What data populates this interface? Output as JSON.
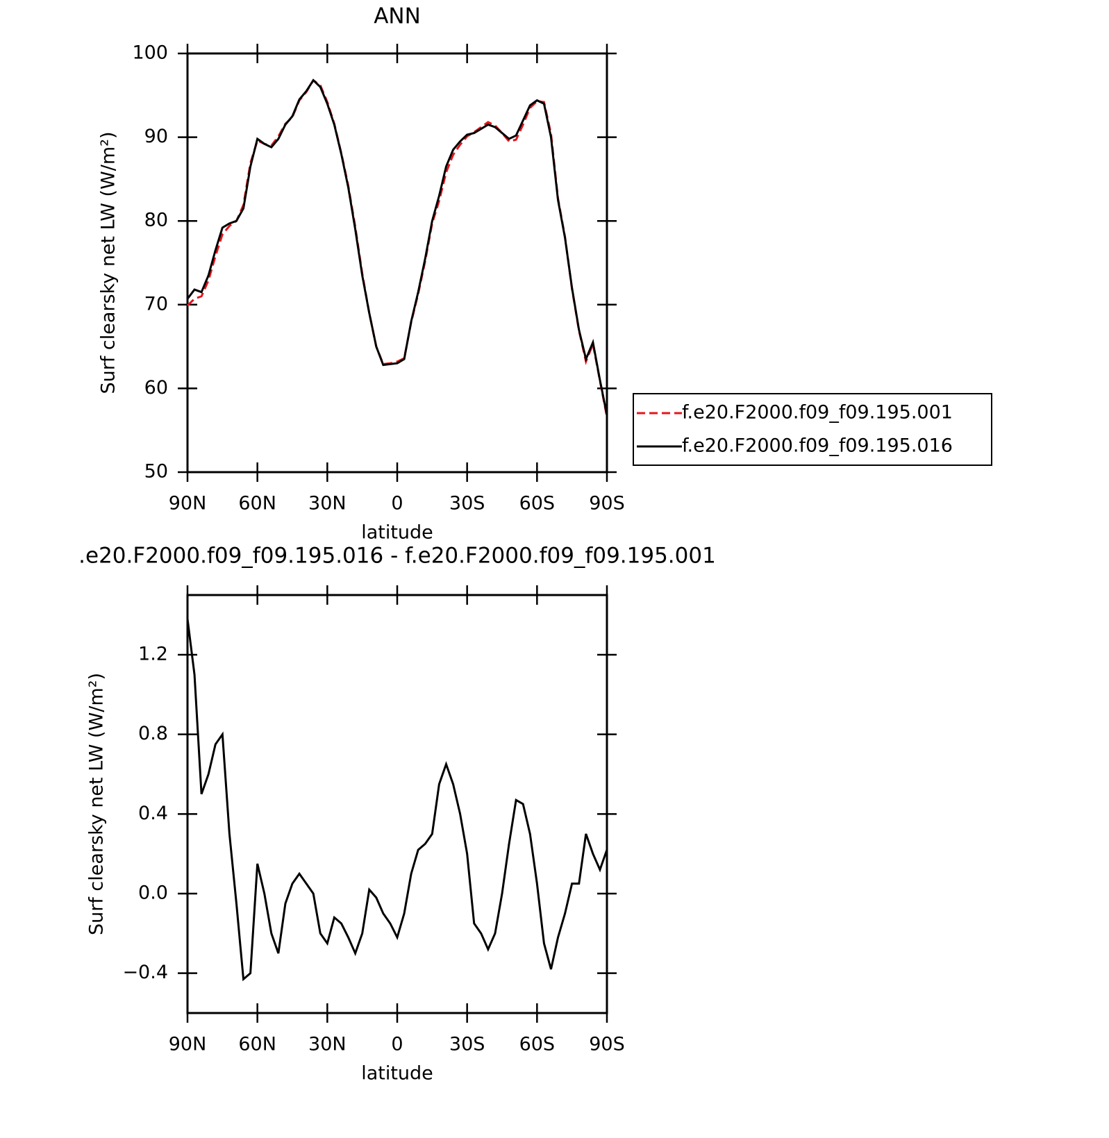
{
  "chart_data": [
    {
      "type": "line",
      "title": "ANN",
      "ylabel": "Surf clearsky net LW (W/m²)",
      "xlabel": "latitude",
      "x": [
        90,
        87,
        84,
        81,
        78,
        75,
        72,
        69,
        66,
        63,
        60,
        57,
        54,
        51,
        48,
        45,
        42,
        39,
        36,
        33,
        30,
        27,
        24,
        21,
        18,
        15,
        12,
        9,
        6,
        3,
        0,
        -3,
        -6,
        -9,
        -12,
        -15,
        -18,
        -21,
        -24,
        -27,
        -30,
        -33,
        -36,
        -39,
        -42,
        -45,
        -48,
        -51,
        -54,
        -57,
        -60,
        -63,
        -66,
        -69,
        -72,
        -75,
        -78,
        -81,
        -84,
        -87,
        -90
      ],
      "xlim": [
        90,
        -90
      ],
      "xticks": [
        {
          "value": 90,
          "label": "90N"
        },
        {
          "value": 60,
          "label": "60N"
        },
        {
          "value": 30,
          "label": "30N"
        },
        0,
        {
          "value": -30,
          "label": "30S"
        },
        {
          "value": -60,
          "label": "60S"
        },
        {
          "value": -90,
          "label": "90S"
        }
      ],
      "ylim": [
        50,
        100
      ],
      "yticks": [
        50,
        60,
        70,
        80,
        90,
        100
      ],
      "legend": "right",
      "series": [
        {
          "name": "f.e20.F2000.f09_f09.195.001",
          "color": "#e8141b",
          "line_style": "dashed",
          "values": [
            69.9,
            70.7,
            71.0,
            72.9,
            75.8,
            78.4,
            79.4,
            80.0,
            81.9,
            86.9,
            89.6,
            89.2,
            89.0,
            90.1,
            91.6,
            92.4,
            94.4,
            95.4,
            96.8,
            96.2,
            94.2,
            91.6,
            88.1,
            84.2,
            79.3,
            73.7,
            69.0,
            65.0,
            62.9,
            63.0,
            63.2,
            63.6,
            67.9,
            71.3,
            75.2,
            79.7,
            82.4,
            85.8,
            87.9,
            89.1,
            90.1,
            90.6,
            91.2,
            91.8,
            91.4,
            90.5,
            89.5,
            89.7,
            91.5,
            93.5,
            94.3,
            94.2,
            90.4,
            82.7,
            78.1,
            71.9,
            66.9,
            63.2,
            65.3,
            60.9,
            56.6
          ]
        },
        {
          "name": "f.e20.F2000.f09_f09.195.016",
          "color": "#000000",
          "line_style": "solid",
          "values": [
            70.7,
            71.8,
            71.5,
            73.5,
            76.5,
            79.2,
            79.7,
            80.0,
            81.5,
            86.5,
            89.8,
            89.2,
            88.8,
            89.8,
            91.5,
            92.5,
            94.5,
            95.5,
            96.8,
            96.0,
            94.0,
            91.5,
            88.0,
            84.0,
            79.0,
            73.5,
            69.0,
            65.0,
            62.8,
            62.9,
            63.0,
            63.5,
            68.0,
            71.5,
            75.5,
            80.0,
            83.0,
            86.5,
            88.5,
            89.5,
            90.3,
            90.5,
            91.0,
            91.5,
            91.2,
            90.5,
            89.8,
            90.2,
            92.0,
            93.8,
            94.4,
            94.0,
            90.0,
            82.5,
            78.0,
            72.0,
            67.0,
            63.5,
            65.5,
            61.0,
            56.8
          ]
        }
      ]
    },
    {
      "type": "line",
      "title": ".e20.F2000.f09_f09.195.016 - f.e20.F2000.f09_f09.195.001",
      "ylabel": "Surf clearsky net LW (W/m²)",
      "xlabel": "latitude",
      "x": [
        90,
        87,
        84,
        81,
        78,
        75,
        72,
        69,
        66,
        63,
        60,
        57,
        54,
        51,
        48,
        45,
        42,
        39,
        36,
        33,
        30,
        27,
        24,
        21,
        18,
        15,
        12,
        9,
        6,
        3,
        0,
        -3,
        -6,
        -9,
        -12,
        -15,
        -18,
        -21,
        -24,
        -27,
        -30,
        -33,
        -36,
        -39,
        -42,
        -45,
        -48,
        -51,
        -54,
        -57,
        -60,
        -63,
        -66,
        -69,
        -72,
        -75,
        -78,
        -81,
        -84,
        -87,
        -90
      ],
      "xlim": [
        90,
        -90
      ],
      "xticks": [
        {
          "value": 90,
          "label": "90N"
        },
        {
          "value": 60,
          "label": "60N"
        },
        {
          "value": 30,
          "label": "30N"
        },
        0,
        {
          "value": -30,
          "label": "30S"
        },
        {
          "value": -60,
          "label": "60S"
        },
        {
          "value": -90,
          "label": "90S"
        }
      ],
      "ylim": [
        -0.6,
        1.5
      ],
      "yticks": [
        {
          "value": -0.4,
          "label": "−0.4"
        },
        {
          "value": 0,
          "label": "0.0"
        },
        0.4,
        0.8,
        1.2
      ],
      "color": "#000000",
      "values": [
        1.38,
        1.1,
        0.5,
        0.6,
        0.75,
        0.8,
        0.3,
        -0.05,
        -0.43,
        -0.4,
        0.15,
        0.0,
        -0.2,
        -0.3,
        -0.05,
        0.05,
        0.1,
        0.05,
        0.0,
        -0.2,
        -0.25,
        -0.12,
        -0.15,
        -0.22,
        -0.3,
        -0.2,
        0.02,
        -0.02,
        -0.1,
        -0.15,
        -0.22,
        -0.1,
        0.1,
        0.22,
        0.25,
        0.3,
        0.55,
        0.65,
        0.55,
        0.4,
        0.2,
        -0.15,
        -0.2,
        -0.28,
        -0.2,
        0.0,
        0.25,
        0.47,
        0.45,
        0.3,
        0.05,
        -0.25,
        -0.38,
        -0.22,
        -0.1,
        0.05,
        0.05,
        0.3,
        0.2,
        0.12,
        0.22
      ]
    }
  ]
}
